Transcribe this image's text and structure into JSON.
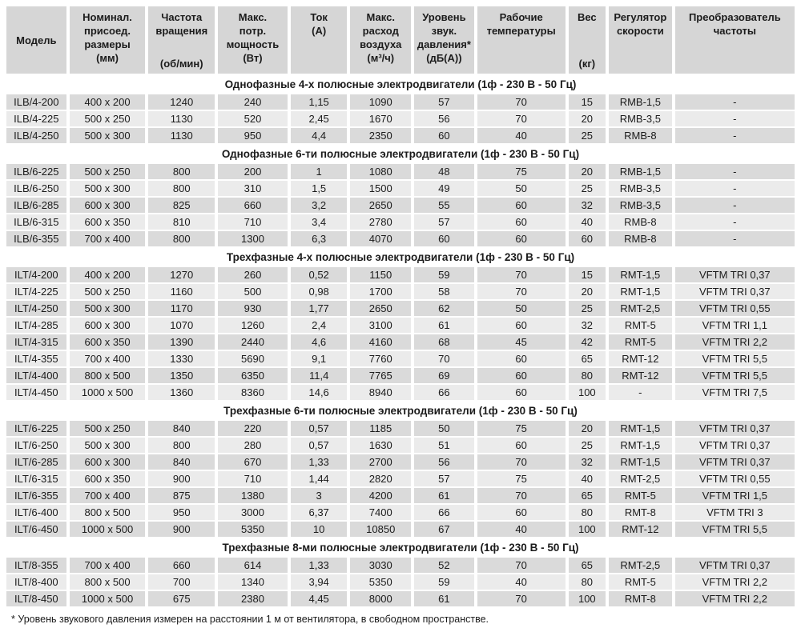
{
  "table": {
    "columns": [
      {
        "id": "model",
        "lines": [
          "Модель"
        ]
      },
      {
        "id": "dims",
        "lines": [
          "Номинал.",
          "присоед.",
          "размеры",
          "(мм)"
        ]
      },
      {
        "id": "rpm",
        "lines": [
          "Частота",
          "вращения"
        ],
        "unit": "(об/мин)"
      },
      {
        "id": "power",
        "lines": [
          "Макс.",
          "потр.",
          "мощность",
          "(Вт)"
        ]
      },
      {
        "id": "current",
        "lines": [
          "Ток",
          "(А)"
        ]
      },
      {
        "id": "airflow",
        "lines": [
          "Макс.",
          "расход",
          "воздуха",
          "(м³/ч)"
        ]
      },
      {
        "id": "sound",
        "lines": [
          "Уровень",
          "звук.",
          "давления*",
          "(дБ(А))"
        ]
      },
      {
        "id": "temp",
        "lines": [
          "Рабочие",
          "температуры"
        ]
      },
      {
        "id": "weight",
        "lines": [
          "Вес"
        ],
        "unit": "(кг)"
      },
      {
        "id": "regulator",
        "lines": [
          "Регулятор",
          "скорости"
        ]
      },
      {
        "id": "converter",
        "lines": [
          "Преобразователь",
          "частоты"
        ]
      }
    ],
    "sections": [
      {
        "title": "Однофазные 4-х полюсные электродвигатели (1ф - 230 В - 50 Гц)",
        "rows": [
          [
            "ILB/4-200",
            "400 x 200",
            "1240",
            "240",
            "1,15",
            "1090",
            "57",
            "70",
            "15",
            "RMB-1,5",
            "-"
          ],
          [
            "ILB/4-225",
            "500 x 250",
            "1130",
            "520",
            "2,45",
            "1670",
            "56",
            "70",
            "20",
            "RMB-3,5",
            "-"
          ],
          [
            "ILB/4-250",
            "500 x 300",
            "1130",
            "950",
            "4,4",
            "2350",
            "60",
            "40",
            "25",
            "RMB-8",
            "-"
          ]
        ]
      },
      {
        "title": "Однофазные 6-ти полюсные электродвигатели (1ф - 230 В - 50 Гц)",
        "rows": [
          [
            "ILB/6-225",
            "500 x 250",
            "800",
            "200",
            "1",
            "1080",
            "48",
            "75",
            "20",
            "RMB-1,5",
            "-"
          ],
          [
            "ILB/6-250",
            "500 x 300",
            "800",
            "310",
            "1,5",
            "1500",
            "49",
            "50",
            "25",
            "RMB-3,5",
            "-"
          ],
          [
            "ILB/6-285",
            "600 x 300",
            "825",
            "660",
            "3,2",
            "2650",
            "55",
            "60",
            "32",
            "RMB-3,5",
            "-"
          ],
          [
            "ILB/6-315",
            "600 x 350",
            "810",
            "710",
            "3,4",
            "2780",
            "57",
            "60",
            "40",
            "RMB-8",
            "-"
          ],
          [
            "ILB/6-355",
            "700 x 400",
            "800",
            "1300",
            "6,3",
            "4070",
            "60",
            "60",
            "60",
            "RMB-8",
            "-"
          ]
        ]
      },
      {
        "title": "Трехфазные 4-х полюсные электродвигатели (1ф - 230 В - 50 Гц)",
        "rows": [
          [
            "ILT/4-200",
            "400 x 200",
            "1270",
            "260",
            "0,52",
            "1150",
            "59",
            "70",
            "15",
            "RMT-1,5",
            "VFTM TRI 0,37"
          ],
          [
            "ILT/4-225",
            "500 x 250",
            "1160",
            "500",
            "0,98",
            "1700",
            "58",
            "70",
            "20",
            "RMT-1,5",
            "VFTM TRI 0,37"
          ],
          [
            "ILT/4-250",
            "500 x 300",
            "1170",
            "930",
            "1,77",
            "2650",
            "62",
            "50",
            "25",
            "RMT-2,5",
            "VFTM TRI 0,55"
          ],
          [
            "ILT/4-285",
            "600 x 300",
            "1070",
            "1260",
            "2,4",
            "3100",
            "61",
            "60",
            "32",
            "RMT-5",
            "VFTM TRI 1,1"
          ],
          [
            "ILT/4-315",
            "600 x 350",
            "1390",
            "2440",
            "4,6",
            "4160",
            "68",
            "45",
            "42",
            "RMT-5",
            "VFTM TRI 2,2"
          ],
          [
            "ILT/4-355",
            "700 x 400",
            "1330",
            "5690",
            "9,1",
            "7760",
            "70",
            "60",
            "65",
            "RMT-12",
            "VFTM TRI 5,5"
          ],
          [
            "ILT/4-400",
            "800 x 500",
            "1350",
            "6350",
            "11,4",
            "7765",
            "69",
            "60",
            "80",
            "RMT-12",
            "VFTM TRI 5,5"
          ],
          [
            "ILT/4-450",
            "1000 x 500",
            "1360",
            "8360",
            "14,6",
            "8940",
            "66",
            "60",
            "100",
            "-",
            "VFTM TRI 7,5"
          ]
        ]
      },
      {
        "title": "Трехфазные 6-ти полюсные электродвигатели (1ф - 230 В - 50 Гц)",
        "rows": [
          [
            "ILT/6-225",
            "500 x 250",
            "840",
            "220",
            "0,57",
            "1185",
            "50",
            "75",
            "20",
            "RMT-1,5",
            "VFTM TRI 0,37"
          ],
          [
            "ILT/6-250",
            "500 x 300",
            "800",
            "280",
            "0,57",
            "1630",
            "51",
            "60",
            "25",
            "RMT-1,5",
            "VFTM TRI 0,37"
          ],
          [
            "ILT/6-285",
            "600 x 300",
            "840",
            "670",
            "1,33",
            "2700",
            "56",
            "70",
            "32",
            "RMT-1,5",
            "VFTM TRI 0,37"
          ],
          [
            "ILT/6-315",
            "600 x 350",
            "900",
            "710",
            "1,44",
            "2820",
            "57",
            "75",
            "40",
            "RMT-2,5",
            "VFTM TRI 0,55"
          ],
          [
            "ILT/6-355",
            "700 x 400",
            "875",
            "1380",
            "3",
            "4200",
            "61",
            "70",
            "65",
            "RMT-5",
            "VFTM TRI 1,5"
          ],
          [
            "ILT/6-400",
            "800 x 500",
            "950",
            "3000",
            "6,37",
            "7400",
            "66",
            "60",
            "80",
            "RMT-8",
            "VFTM TRI 3"
          ],
          [
            "ILT/6-450",
            "1000 x 500",
            "900",
            "5350",
            "10",
            "10850",
            "67",
            "40",
            "100",
            "RMT-12",
            "VFTM TRI 5,5"
          ]
        ]
      },
      {
        "title": "Трехфазные 8-ми полюсные электродвигатели (1ф - 230 В - 50 Гц)",
        "rows": [
          [
            "ILT/8-355",
            "700 x 400",
            "660",
            "614",
            "1,33",
            "3030",
            "52",
            "70",
            "65",
            "RMT-2,5",
            "VFTM TRI 0,37"
          ],
          [
            "ILT/8-400",
            "800 x 500",
            "700",
            "1340",
            "3,94",
            "5350",
            "59",
            "40",
            "80",
            "RMT-5",
            "VFTM TRI 2,2"
          ],
          [
            "ILT/8-450",
            "1000 x 500",
            "675",
            "2380",
            "4,45",
            "8000",
            "61",
            "70",
            "100",
            "RMT-8",
            "VFTM TRI 2,2"
          ]
        ]
      }
    ],
    "footnote": "* Уровень звукового давления измерен на расстоянии 1 м от вентилятора, в свободном пространстве."
  }
}
